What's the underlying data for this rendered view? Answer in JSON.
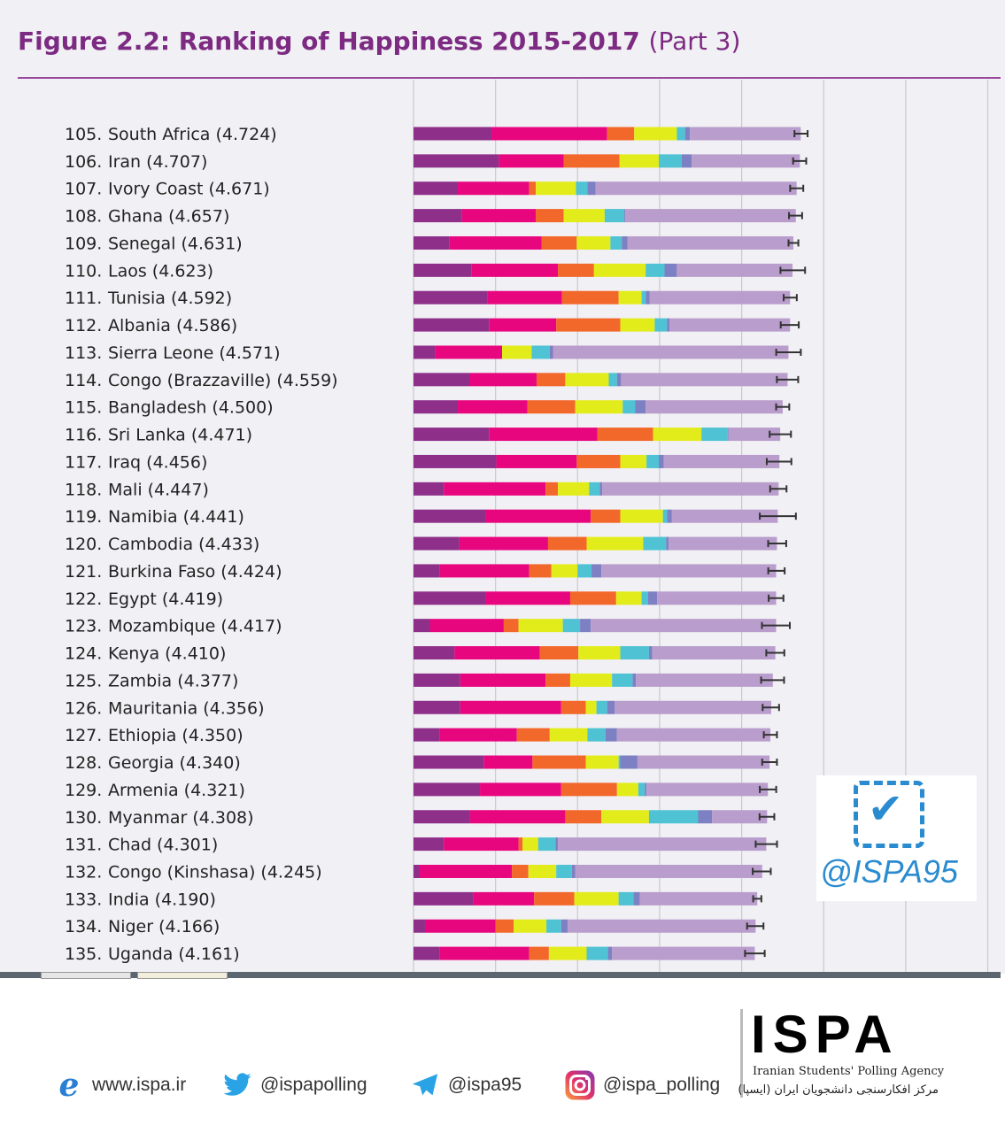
{
  "title": {
    "main": "Figure 2.2: Ranking of Happiness 2015-2017",
    "part": "(Part 3)"
  },
  "colors": {
    "gdp": "#8e2f8a",
    "social_support": "#e8067f",
    "health": "#f2672a",
    "freedom": "#e2ec1a",
    "generosity": "#4fc2d3",
    "corruption": "#7d80c2",
    "dystopia_residual": "#b99dcc",
    "title": "#7c2a82"
  },
  "chart_data": {
    "type": "bar",
    "orientation": "horizontal-stacked",
    "xlim": [
      0,
      7
    ],
    "grid": true,
    "segment_order": [
      "gdp",
      "social_support",
      "health",
      "freedom",
      "generosity",
      "corruption",
      "dystopia_residual"
    ],
    "rows": [
      {
        "rank": "105.",
        "label": "South Africa (4.724)",
        "score": 4.724,
        "parts": [
          0.95,
          1.41,
          0.33,
          0.52,
          0.1,
          0.06,
          1.35
        ],
        "err": 0.08
      },
      {
        "rank": "106.",
        "label": "Iran (4.707)",
        "score": 4.707,
        "parts": [
          1.04,
          0.79,
          0.68,
          0.48,
          0.28,
          0.12,
          1.32
        ],
        "err": 0.08
      },
      {
        "rank": "107.",
        "label": "Ivory Coast (4.671)",
        "score": 4.671,
        "parts": [
          0.54,
          0.87,
          0.08,
          0.49,
          0.14,
          0.1,
          2.45
        ],
        "err": 0.08
      },
      {
        "rank": "108.",
        "label": "Ghana (4.657)",
        "score": 4.657,
        "parts": [
          0.59,
          0.9,
          0.34,
          0.5,
          0.24,
          0.01,
          2.08
        ],
        "err": 0.08
      },
      {
        "rank": "109.",
        "label": "Senegal (4.631)",
        "score": 4.631,
        "parts": [
          0.44,
          1.12,
          0.43,
          0.41,
          0.14,
          0.07,
          2.02
        ],
        "err": 0.06
      },
      {
        "rank": "110.",
        "label": "Laos (4.623)",
        "score": 4.623,
        "parts": [
          0.71,
          1.05,
          0.44,
          0.63,
          0.23,
          0.15,
          1.41
        ],
        "err": 0.15
      },
      {
        "rank": "111.",
        "label": "Tunisia (4.592)",
        "score": 4.592,
        "parts": [
          0.9,
          0.91,
          0.69,
          0.28,
          0.05,
          0.05,
          1.71
        ],
        "err": 0.08
      },
      {
        "rank": "112.",
        "label": "Albania (4.586)",
        "score": 4.586,
        "parts": [
          0.92,
          0.82,
          0.78,
          0.42,
          0.15,
          0.03,
          1.47
        ],
        "err": 0.11
      },
      {
        "rank": "113.",
        "label": "Sierra Leone (4.571)",
        "score": 4.571,
        "parts": [
          0.26,
          0.82,
          0.0,
          0.36,
          0.22,
          0.04,
          2.87
        ],
        "err": 0.15
      },
      {
        "rank": "114.",
        "label": "Congo (Brazzaville) (4.559)",
        "score": 4.559,
        "parts": [
          0.68,
          0.82,
          0.35,
          0.53,
          0.1,
          0.05,
          2.03
        ],
        "err": 0.13
      },
      {
        "rank": "115.",
        "label": "Bangladesh (4.500)",
        "score": 4.5,
        "parts": [
          0.54,
          0.85,
          0.58,
          0.58,
          0.15,
          0.13,
          1.67
        ],
        "err": 0.08
      },
      {
        "rank": "116.",
        "label": "Sri Lanka (4.471)",
        "score": 4.471,
        "parts": [
          0.92,
          1.32,
          0.68,
          0.59,
          0.32,
          0.01,
          0.63
        ],
        "err": 0.13
      },
      {
        "rank": "117.",
        "label": "Iraq (4.456)",
        "score": 4.456,
        "parts": [
          1.01,
          0.98,
          0.53,
          0.32,
          0.15,
          0.06,
          1.41
        ],
        "err": 0.15
      },
      {
        "rank": "118.",
        "label": "Mali (4.447)",
        "score": 4.447,
        "parts": [
          0.37,
          1.24,
          0.15,
          0.38,
          0.13,
          0.03,
          2.15
        ],
        "err": 0.1
      },
      {
        "rank": "119.",
        "label": "Namibia (4.441)",
        "score": 4.441,
        "parts": [
          0.88,
          1.28,
          0.36,
          0.52,
          0.05,
          0.06,
          1.29
        ],
        "err": 0.22
      },
      {
        "rank": "120.",
        "label": "Cambodia (4.433)",
        "score": 4.433,
        "parts": [
          0.56,
          1.08,
          0.47,
          0.69,
          0.28,
          0.03,
          1.32
        ],
        "err": 0.11
      },
      {
        "rank": "121.",
        "label": "Burkina Faso (4.424)",
        "score": 4.424,
        "parts": [
          0.32,
          1.09,
          0.27,
          0.32,
          0.17,
          0.12,
          2.13
        ],
        "err": 0.1
      },
      {
        "rank": "122.",
        "label": "Egypt (4.419)",
        "score": 4.419,
        "parts": [
          0.88,
          1.03,
          0.56,
          0.31,
          0.08,
          0.11,
          1.45
        ],
        "err": 0.09
      },
      {
        "rank": "123.",
        "label": "Mozambique (4.417)",
        "score": 4.417,
        "parts": [
          0.2,
          0.9,
          0.18,
          0.54,
          0.21,
          0.13,
          2.26
        ],
        "err": 0.17
      },
      {
        "rank": "124.",
        "label": "Kenya (4.410)",
        "score": 4.41,
        "parts": [
          0.5,
          1.04,
          0.47,
          0.51,
          0.35,
          0.04,
          1.5
        ],
        "err": 0.11
      },
      {
        "rank": "125.",
        "label": "Zambia (4.377)",
        "score": 4.377,
        "parts": [
          0.57,
          1.04,
          0.3,
          0.51,
          0.25,
          0.04,
          1.67
        ],
        "err": 0.14
      },
      {
        "rank": "126.",
        "label": "Mauritania (4.356)",
        "score": 4.356,
        "parts": [
          0.57,
          1.23,
          0.3,
          0.13,
          0.13,
          0.09,
          1.91
        ],
        "err": 0.1
      },
      {
        "rank": "127.",
        "label": "Ethiopia (4.350)",
        "score": 4.35,
        "parts": [
          0.32,
          0.94,
          0.4,
          0.46,
          0.22,
          0.14,
          1.87
        ],
        "err": 0.08
      },
      {
        "rank": "128.",
        "label": "Georgia (4.340)",
        "score": 4.34,
        "parts": [
          0.86,
          0.59,
          0.65,
          0.4,
          0.02,
          0.21,
          1.61
        ],
        "err": 0.09
      },
      {
        "rank": "129.",
        "label": "Armenia (4.321)",
        "score": 4.321,
        "parts": [
          0.81,
          0.99,
          0.68,
          0.26,
          0.08,
          0.02,
          1.48
        ],
        "err": 0.1
      },
      {
        "rank": "130.",
        "label": "Myanmar (4.308)",
        "score": 4.308,
        "parts": [
          0.69,
          1.16,
          0.44,
          0.58,
          0.6,
          0.17,
          0.67
        ],
        "err": 0.09
      },
      {
        "rank": "131.",
        "label": "Chad (4.301)",
        "score": 4.301,
        "parts": [
          0.37,
          0.91,
          0.05,
          0.19,
          0.21,
          0.03,
          2.54
        ],
        "err": 0.13
      },
      {
        "rank": "132.",
        "label": "Congo (Kinshasa) (4.245)",
        "score": 4.245,
        "parts": [
          0.07,
          1.13,
          0.2,
          0.34,
          0.19,
          0.04,
          2.28
        ],
        "err": 0.11
      },
      {
        "rank": "133.",
        "label": "India (4.190)",
        "score": 4.19,
        "parts": [
          0.73,
          0.74,
          0.49,
          0.54,
          0.18,
          0.08,
          1.43
        ],
        "err": 0.05
      },
      {
        "rank": "134.",
        "label": "Niger (4.166)",
        "score": 4.166,
        "parts": [
          0.14,
          0.86,
          0.22,
          0.4,
          0.18,
          0.08,
          2.29
        ],
        "err": 0.1
      },
      {
        "rank": "135.",
        "label": "Uganda (4.161)",
        "score": 4.161,
        "parts": [
          0.32,
          1.09,
          0.24,
          0.46,
          0.26,
          0.05,
          1.74
        ],
        "err": 0.12
      }
    ]
  },
  "watermark": {
    "handle": "@ISPA95",
    "icon": "dashed-checkbox-icon"
  },
  "footer": {
    "website": {
      "icon": "internet-explorer-icon",
      "text": "www.ispa.ir"
    },
    "twitter": {
      "icon": "twitter-bird-icon",
      "text": "@ispapolling"
    },
    "telegram": {
      "icon": "telegram-plane-icon",
      "text": "@ispa95"
    },
    "instagram": {
      "icon": "instagram-icon",
      "text": "@ispa_polling"
    },
    "logo": {
      "text": "ISPA",
      "english": "Iranian Students' Polling Agency",
      "persian": "مرکز افکارسنجی دانشجویان ایران (ایسپا)"
    }
  }
}
